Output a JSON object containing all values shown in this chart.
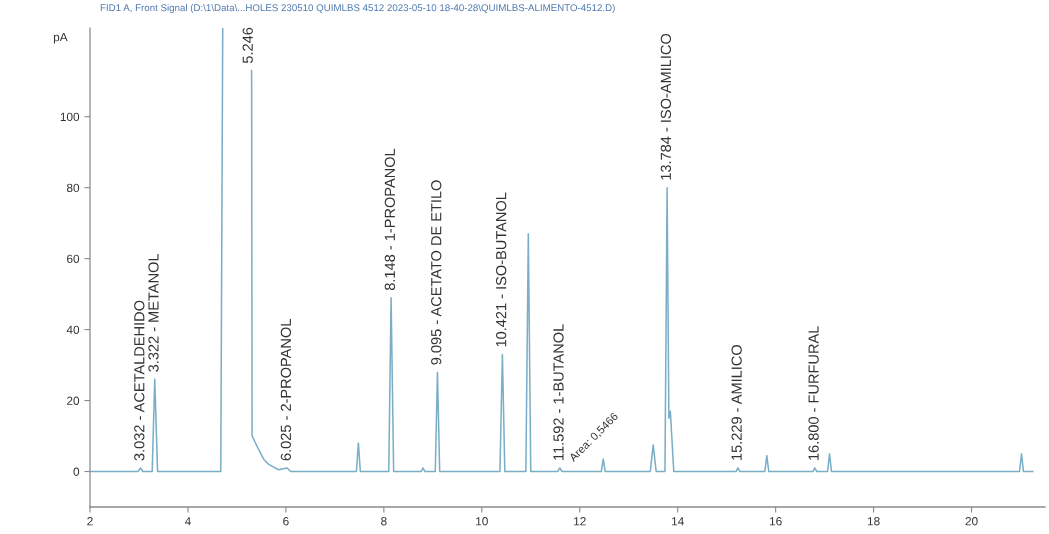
{
  "chart_data": {
    "type": "line",
    "title": "FID1 A, Front Signal (D:\\1\\Data\\...HOLES 230510 QUIMLBS 4512 2023-05-10 18-40-28\\QUIMLBS-ALIMENTO-4512.D)",
    "ylabel": "pA",
    "xlim": [
      2,
      21.5
    ],
    "ylim": [
      -10,
      125
    ],
    "xticks": [
      2,
      4,
      6,
      8,
      10,
      12,
      14,
      16,
      18,
      20
    ],
    "yticks": [
      0,
      20,
      40,
      60,
      80,
      100
    ],
    "series": [
      {
        "color": "#7aaec6",
        "x": [
          2.0,
          2.98,
          3.032,
          3.08,
          3.27,
          3.322,
          3.38,
          4.67,
          4.71,
          5.0,
          5.3,
          5.31,
          5.45,
          5.55,
          5.65,
          5.85,
          6.025,
          6.1,
          7.44,
          7.48,
          7.52,
          8.1,
          8.148,
          8.2,
          8.76,
          8.8,
          8.84,
          9.05,
          9.095,
          9.14,
          10.37,
          10.421,
          10.47,
          10.9,
          10.95,
          11.0,
          11.55,
          11.592,
          11.64,
          12.44,
          12.48,
          12.52,
          13.44,
          13.5,
          13.56,
          13.74,
          13.784,
          13.82,
          13.85,
          13.92,
          15.19,
          15.229,
          15.27,
          15.78,
          15.82,
          15.86,
          16.76,
          16.8,
          16.84,
          17.06,
          17.1,
          17.14,
          20.98,
          21.02,
          21.06,
          21.25
        ],
        "values": [
          0,
          0,
          1,
          0,
          0,
          26,
          0,
          0,
          125,
          null,
          113,
          10,
          6,
          3.4,
          2,
          0.5,
          1,
          0,
          0,
          8,
          0,
          0,
          49,
          0,
          0,
          1,
          0,
          0,
          28,
          0,
          0,
          33,
          0,
          0,
          67,
          0,
          0,
          1,
          0,
          0,
          3.5,
          0,
          0,
          7.5,
          0,
          0,
          80,
          15,
          17,
          0,
          0,
          1,
          0,
          0,
          4.5,
          0,
          0,
          1,
          0,
          0,
          5,
          0,
          0,
          5,
          0,
          0
        ]
      }
    ],
    "annotations": [
      {
        "text": "3.032 - ACETALDEHIDO",
        "x": 3.032,
        "y": 1
      },
      {
        "text": "3.322 - METANOL",
        "x": 3.322,
        "y": 26
      },
      {
        "text": "5.246",
        "x": 5.246,
        "y": 113
      },
      {
        "text": "6.025 - 2-PROPANOL",
        "x": 6.025,
        "y": 1
      },
      {
        "text": "8.148 - 1-PROPANOL",
        "x": 8.148,
        "y": 49
      },
      {
        "text": "9.095 - ACETATO DE ETILO",
        "x": 9.095,
        "y": 28
      },
      {
        "text": "10.421 - ISO-BUTANOL",
        "x": 10.421,
        "y": 33
      },
      {
        "text": "11.592 - 1-BUTANOL",
        "x": 11.592,
        "y": 1
      },
      "Area: 0,5466",
      {
        "text": "13.784 - ISO-AMILICO",
        "x": 13.784,
        "y": 80
      },
      {
        "text": "15.229 - AMILICO",
        "x": 15.229,
        "y": 1
      },
      {
        "text": "16.800 - FURFURAL",
        "x": 16.8,
        "y": 1
      }
    ]
  }
}
